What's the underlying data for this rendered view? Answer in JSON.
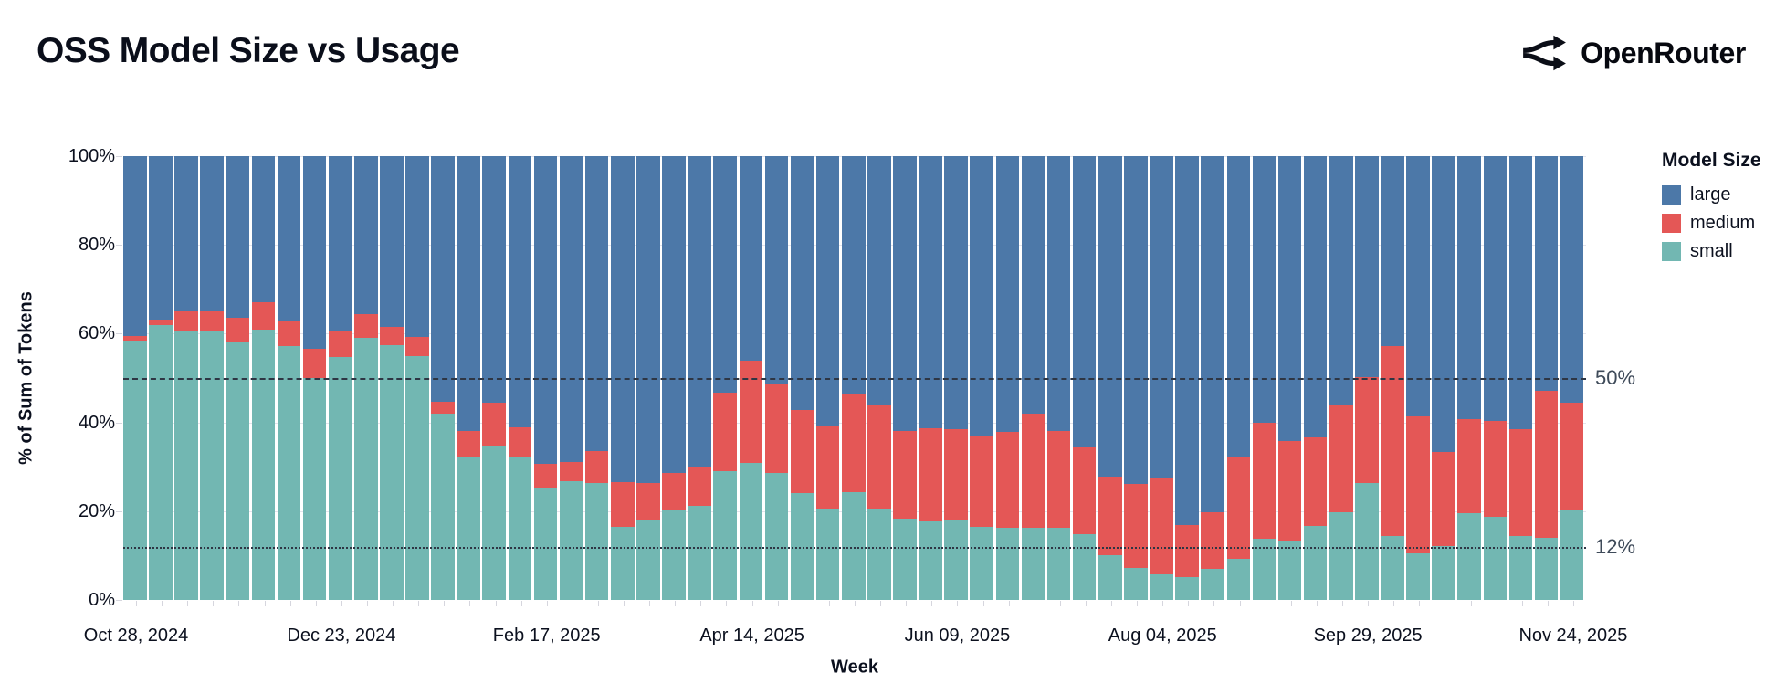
{
  "header": {
    "title": "OSS Model Size vs Usage",
    "brand": "OpenRouter"
  },
  "chart_data": {
    "type": "bar",
    "stacked": true,
    "title": "OSS Model Size vs Usage",
    "xlabel": "Week",
    "ylabel": "% of Sum of Tokens",
    "ylim": [
      0,
      100
    ],
    "grid": true,
    "y_ticks": [
      {
        "value": 0,
        "label": "0%"
      },
      {
        "value": 20,
        "label": "20%"
      },
      {
        "value": 40,
        "label": "40%"
      },
      {
        "value": 60,
        "label": "60%"
      },
      {
        "value": 80,
        "label": "80%"
      },
      {
        "value": 100,
        "label": "100%"
      }
    ],
    "x_tick_indices": [
      0,
      8,
      16,
      24,
      32,
      40,
      48,
      56
    ],
    "categories": [
      "Oct 28, 2024",
      "Nov 04, 2024",
      "Nov 11, 2024",
      "Nov 18, 2024",
      "Nov 25, 2024",
      "Dec 02, 2024",
      "Dec 09, 2024",
      "Dec 16, 2024",
      "Dec 23, 2024",
      "Dec 30, 2024",
      "Jan 06, 2025",
      "Jan 13, 2025",
      "Jan 20, 2025",
      "Jan 27, 2025",
      "Feb 03, 2025",
      "Feb 10, 2025",
      "Feb 17, 2025",
      "Feb 24, 2025",
      "Mar 03, 2025",
      "Mar 10, 2025",
      "Mar 17, 2025",
      "Mar 24, 2025",
      "Mar 31, 2025",
      "Apr 07, 2025",
      "Apr 14, 2025",
      "Apr 21, 2025",
      "Apr 28, 2025",
      "May 05, 2025",
      "May 12, 2025",
      "May 19, 2025",
      "May 26, 2025",
      "Jun 02, 2025",
      "Jun 09, 2025",
      "Jun 16, 2025",
      "Jun 23, 2025",
      "Jun 30, 2025",
      "Jul 07, 2025",
      "Jul 14, 2025",
      "Jul 21, 2025",
      "Jul 28, 2025",
      "Aug 04, 2025",
      "Aug 11, 2025",
      "Aug 18, 2025",
      "Aug 25, 2025",
      "Sep 01, 2025",
      "Sep 08, 2025",
      "Sep 15, 2025",
      "Sep 22, 2025",
      "Sep 29, 2025",
      "Oct 06, 2025",
      "Oct 13, 2025",
      "Oct 20, 2025",
      "Oct 27, 2025",
      "Nov 03, 2025",
      "Nov 10, 2025",
      "Nov 17, 2025",
      "Nov 24, 2025"
    ],
    "series": [
      {
        "name": "large",
        "color": "#4c78a8",
        "values": [
          40.5,
          36.8,
          35.0,
          34.9,
          36.5,
          33.0,
          37.0,
          43.5,
          39.6,
          35.5,
          38.4,
          40.8,
          55.3,
          61.9,
          55.6,
          61.2,
          69.3,
          68.9,
          66.5,
          73.5,
          73.7,
          71.5,
          70.0,
          53.2,
          46.1,
          51.4,
          57.1,
          60.8,
          53.4,
          56.2,
          61.9,
          61.4,
          61.5,
          63.2,
          62.2,
          58.0,
          61.9,
          65.5,
          72.2,
          73.9,
          72.5,
          83.1,
          80.2,
          68.0,
          60.0,
          64.1,
          63.4,
          56.0,
          49.7,
          42.9,
          58.7,
          66.7,
          59.3,
          59.7,
          61.5,
          52.8,
          55.6
        ]
      },
      {
        "name": "medium",
        "color": "#e45756",
        "values": [
          1.0,
          1.2,
          4.2,
          4.6,
          5.2,
          6.0,
          5.7,
          6.5,
          5.6,
          5.5,
          4.1,
          4.2,
          2.7,
          5.7,
          9.7,
          6.8,
          5.3,
          4.3,
          7.2,
          10.0,
          8.1,
          8.1,
          8.9,
          17.8,
          23.0,
          19.9,
          18.8,
          18.6,
          22.3,
          23.2,
          19.7,
          21.0,
          20.7,
          20.3,
          21.5,
          25.7,
          21.8,
          19.7,
          17.8,
          18.8,
          21.8,
          11.7,
          12.9,
          22.7,
          26.2,
          22.5,
          19.9,
          24.2,
          24.0,
          42.6,
          30.8,
          21.1,
          21.1,
          21.6,
          24.2,
          33.3,
          24.3
        ]
      },
      {
        "name": "small",
        "color": "#72b7b2",
        "values": [
          58.5,
          62.0,
          60.8,
          60.5,
          58.3,
          61.0,
          57.3,
          50.0,
          54.8,
          59.0,
          57.5,
          55.0,
          42.0,
          32.4,
          34.7,
          32.0,
          25.4,
          26.8,
          26.3,
          16.5,
          18.2,
          20.4,
          21.1,
          29.0,
          30.9,
          28.7,
          24.1,
          20.6,
          24.3,
          20.6,
          18.4,
          17.6,
          17.8,
          16.5,
          16.3,
          16.3,
          16.3,
          14.8,
          10.0,
          7.3,
          5.7,
          5.2,
          6.9,
          9.3,
          13.8,
          13.4,
          16.7,
          19.8,
          26.3,
          14.5,
          10.5,
          12.2,
          19.6,
          18.7,
          14.3,
          13.9,
          20.1
        ]
      }
    ],
    "annotations": [
      {
        "label": "50%",
        "value": 50,
        "style": "dashed"
      },
      {
        "label": "12%",
        "value": 12,
        "style": "dotted"
      }
    ],
    "legend": {
      "title": "Model Size",
      "position": "right",
      "entries": [
        "large",
        "medium",
        "small"
      ]
    }
  }
}
